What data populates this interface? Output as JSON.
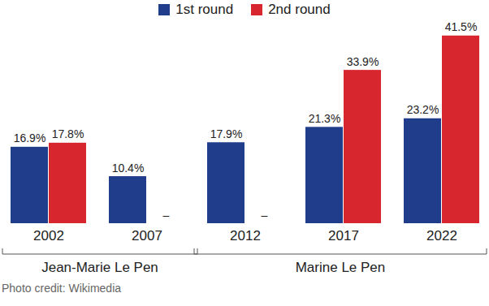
{
  "chart_data": {
    "type": "bar",
    "categories": [
      "2002",
      "2007",
      "2012",
      "2017",
      "2022"
    ],
    "series": [
      {
        "name": "1st round",
        "color": "#1f3d8a",
        "values": [
          16.9,
          10.4,
          17.9,
          21.3,
          23.2
        ],
        "value_labels": [
          "16.9%",
          "10.4%",
          "17.9%",
          "21.3%",
          "23.2%"
        ]
      },
      {
        "name": "2nd round",
        "color": "#d7262e",
        "values": [
          17.8,
          null,
          null,
          33.9,
          41.5
        ],
        "value_labels": [
          "17.8%",
          "–",
          "–",
          "33.9%",
          "41.5%"
        ]
      }
    ],
    "ylim": [
      0,
      42
    ],
    "data_labels": true,
    "tick_labels": "x",
    "legend": "top",
    "annotations": [
      {
        "text": "Jean-Marie Le Pen",
        "categories": [
          "2002",
          "2007"
        ]
      },
      {
        "text": "Marine Le Pen",
        "categories": [
          "2012",
          "2022"
        ]
      }
    ],
    "caption": "Photo credit: Wikimedia"
  }
}
